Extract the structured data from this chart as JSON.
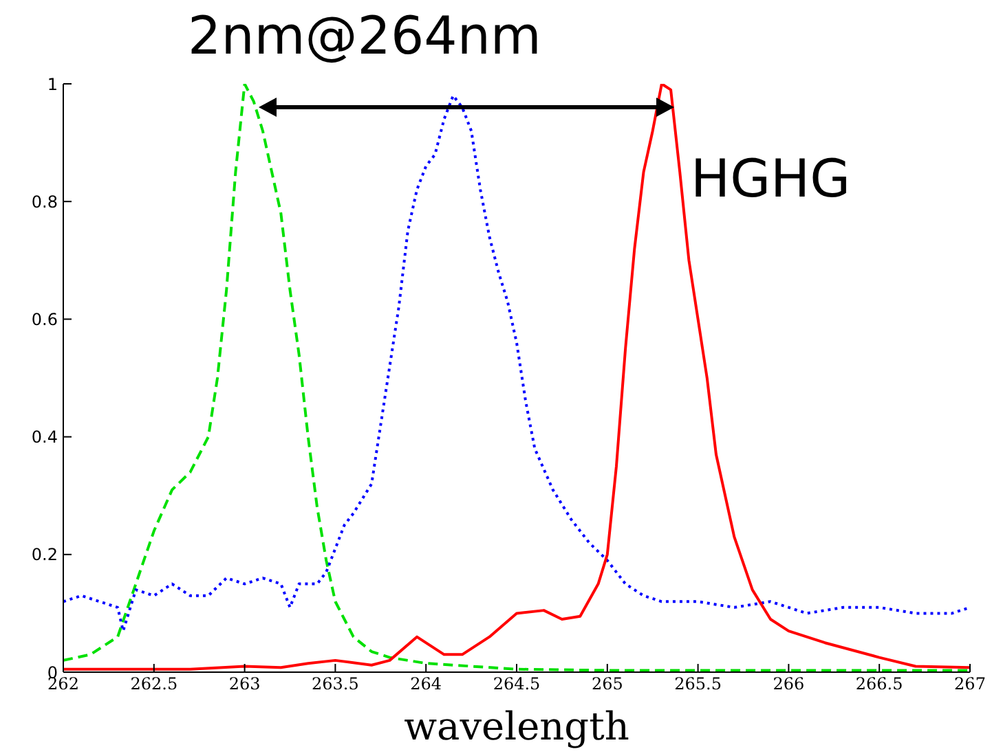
{
  "chart_data": {
    "type": "line",
    "title": "2nm@264nm",
    "xlabel": "wavelength",
    "xlim": [
      262,
      267
    ],
    "xticks": [
      262,
      262.5,
      263,
      263.5,
      264,
      264.5,
      265,
      265.5,
      266,
      266.5,
      267
    ],
    "ylim": [
      0,
      1
    ],
    "yticks": [
      0,
      0.2,
      0.4,
      0.6,
      0.8,
      1
    ],
    "grid": false,
    "marker": "none",
    "annotations": [
      "HGHG"
    ],
    "series": [
      {
        "color": "#00e000",
        "line_style": "dashed",
        "x": [
          262,
          262.15,
          262.3,
          262.4,
          262.5,
          262.6,
          262.7,
          262.8,
          262.85,
          262.9,
          262.95,
          263,
          263.05,
          263.1,
          263.2,
          263.25,
          263.3,
          263.35,
          263.4,
          263.45,
          263.5,
          263.6,
          263.7,
          263.8,
          264,
          264.5,
          265,
          266,
          267
        ],
        "values": [
          0.02,
          0.03,
          0.06,
          0.15,
          0.24,
          0.31,
          0.34,
          0.4,
          0.5,
          0.65,
          0.85,
          1,
          0.97,
          0.92,
          0.78,
          0.65,
          0.54,
          0.4,
          0.28,
          0.19,
          0.12,
          0.06,
          0.035,
          0.025,
          0.015,
          0.005,
          0.003,
          0.003,
          0.003
        ]
      },
      {
        "color": "#0000ff",
        "line_style": "dotted",
        "x": [
          262,
          262.1,
          262.2,
          262.3,
          262.33,
          262.4,
          262.5,
          262.6,
          262.7,
          262.8,
          262.9,
          263,
          263.1,
          263.2,
          263.25,
          263.3,
          263.4,
          263.45,
          263.5,
          263.55,
          263.6,
          263.7,
          263.75,
          263.8,
          263.85,
          263.9,
          263.95,
          264,
          264.05,
          264.1,
          264.15,
          264.2,
          264.25,
          264.3,
          264.35,
          264.4,
          264.45,
          264.5,
          264.55,
          264.6,
          264.7,
          264.8,
          264.9,
          265,
          265.1,
          265.2,
          265.3,
          265.5,
          265.7,
          265.9,
          266.1,
          266.3,
          266.5,
          266.7,
          266.9,
          267
        ],
        "values": [
          0.12,
          0.13,
          0.12,
          0.11,
          0.07,
          0.14,
          0.13,
          0.15,
          0.13,
          0.13,
          0.16,
          0.15,
          0.16,
          0.15,
          0.11,
          0.15,
          0.15,
          0.17,
          0.21,
          0.25,
          0.27,
          0.32,
          0.42,
          0.52,
          0.62,
          0.75,
          0.82,
          0.86,
          0.88,
          0.94,
          0.98,
          0.96,
          0.92,
          0.82,
          0.74,
          0.68,
          0.63,
          0.56,
          0.46,
          0.38,
          0.31,
          0.26,
          0.22,
          0.19,
          0.15,
          0.13,
          0.12,
          0.12,
          0.11,
          0.12,
          0.1,
          0.11,
          0.11,
          0.1,
          0.1,
          0.11
        ]
      },
      {
        "color": "#ff0000",
        "line_style": "solid",
        "x": [
          262,
          262.7,
          263,
          263.2,
          263.35,
          263.5,
          263.7,
          263.8,
          263.95,
          264.1,
          264.2,
          264.35,
          264.5,
          264.65,
          264.75,
          264.85,
          264.95,
          265,
          265.05,
          265.1,
          265.15,
          265.2,
          265.25,
          265.3,
          265.35,
          265.4,
          265.45,
          265.5,
          265.55,
          265.6,
          265.7,
          265.8,
          265.9,
          266,
          266.2,
          266.5,
          266.7,
          267
        ],
        "values": [
          0.005,
          0.005,
          0.01,
          0.008,
          0.015,
          0.02,
          0.012,
          0.02,
          0.06,
          0.03,
          0.03,
          0.06,
          0.1,
          0.105,
          0.09,
          0.095,
          0.15,
          0.2,
          0.35,
          0.55,
          0.72,
          0.85,
          0.92,
          1,
          0.99,
          0.85,
          0.7,
          0.6,
          0.5,
          0.37,
          0.23,
          0.14,
          0.09,
          0.07,
          0.05,
          0.025,
          0.01,
          0.008
        ]
      }
    ]
  }
}
